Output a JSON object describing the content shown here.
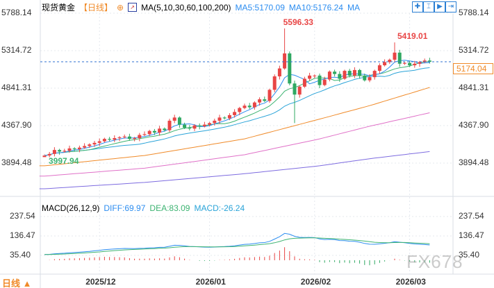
{
  "header": {
    "title": "现货黄金",
    "period": "【日线】",
    "ma_label": "MA(5,10,30,60,100,200)",
    "ma5": "MA5:5170.09",
    "ma10": "MA10:5176.24",
    "ma": "MA"
  },
  "macd_header": {
    "label": "MACD(26,12,9)",
    "diff": "DIFF:69.97",
    "dea": "DEA:83.09",
    "macd": "MACD:-26.24"
  },
  "toolbar_icons": [
    "crosshair-icon",
    "range-select-icon",
    "play-icon",
    "move-right-icon"
  ],
  "bottom": {
    "period": "日线 ▲",
    "watermark": "FX678"
  },
  "colors": {
    "up": "#e84545",
    "down": "#2fa862",
    "ma5": "#2c8df0",
    "ma10": "#3cb371",
    "ma20": "#29a3d8",
    "ma60": "#f08a28",
    "ma100": "#e070c8",
    "ma200": "#7d6be0",
    "last": "#f08a28"
  },
  "chart_data": {
    "type": "candlestick",
    "price_ticks": [
      5788.14,
      5314.72,
      4841.31,
      4367.9,
      3894.48
    ],
    "macd_ticks": [
      237.54,
      136.47,
      35.4
    ],
    "x_ticks": [
      {
        "label": "2025/12",
        "index": 11
      },
      {
        "label": "2026/01",
        "index": 33
      },
      {
        "label": "2026/02",
        "index": 54
      },
      {
        "label": "2026/03",
        "index": 73
      }
    ],
    "annotations": {
      "high": {
        "label": "5596.33",
        "value": 5596.33,
        "index": 48
      },
      "recent_high": {
        "label": "5419.01",
        "value": 5419.01,
        "index": 70
      },
      "low": {
        "label": "3997.94",
        "value": 3997.94,
        "index": 0
      },
      "last": {
        "label": "5174.04",
        "value": 5174.04
      }
    },
    "special_low": {
      "index": 50,
      "value": 4400
    },
    "closes": [
      3990,
      4010,
      4060,
      4040,
      4050,
      4080,
      4070,
      4090,
      4110,
      4130,
      4150,
      4170,
      4200,
      4190,
      4210,
      4220,
      4230,
      4200,
      4210,
      4250,
      4260,
      4300,
      4280,
      4330,
      4310,
      4430,
      4470,
      4380,
      4340,
      4330,
      4370,
      4360,
      4380,
      4400,
      4430,
      4470,
      4460,
      4500,
      4540,
      4590,
      4620,
      4600,
      4660,
      4700,
      4680,
      4820,
      4990,
      5090,
      5280,
      4900,
      4760,
      4860,
      4960,
      5000,
      5000,
      4880,
      4950,
      5050,
      5020,
      4960,
      5060,
      5000,
      5070,
      5000,
      4940,
      4980,
      5060,
      5130,
      5170,
      5200,
      5290,
      5150,
      5160,
      5130,
      5150,
      5170,
      5190,
      5174.04
    ],
    "long_mas": {
      "ma60": [
        [
          0,
          3860
        ],
        [
          20,
          3990
        ],
        [
          40,
          4200
        ],
        [
          55,
          4450
        ],
        [
          65,
          4620
        ],
        [
          77,
          4850
        ]
      ],
      "ma100": [
        [
          0,
          3730
        ],
        [
          20,
          3830
        ],
        [
          40,
          4000
        ],
        [
          55,
          4200
        ],
        [
          65,
          4360
        ],
        [
          77,
          4530
        ]
      ],
      "ma200": [
        [
          0,
          3570
        ],
        [
          20,
          3650
        ],
        [
          40,
          3760
        ],
        [
          55,
          3860
        ],
        [
          65,
          3950
        ],
        [
          77,
          4040
        ]
      ]
    }
  }
}
